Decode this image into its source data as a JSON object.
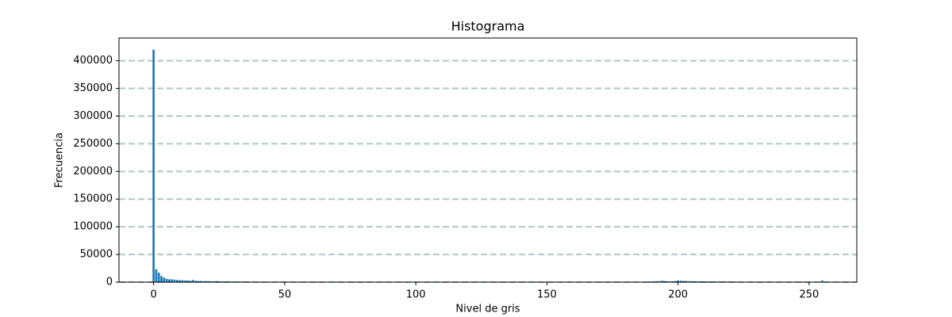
{
  "chart_data": {
    "type": "bar",
    "title": "Histograma",
    "x_label": "Nivel de gris",
    "y_label": "Frecuencia",
    "x": [
      0,
      1,
      2,
      3,
      4,
      5,
      6,
      7,
      8,
      9,
      10,
      11,
      12,
      13,
      14,
      15,
      16,
      17,
      18,
      19,
      20,
      21,
      22,
      23,
      24,
      25,
      26,
      27,
      28,
      29,
      30,
      31,
      32,
      33,
      34,
      35,
      36,
      37,
      38,
      39,
      40,
      41,
      42,
      43,
      44,
      45,
      46,
      47,
      48,
      49,
      50,
      51,
      52,
      53,
      54,
      55,
      56,
      57,
      58,
      59,
      60,
      61,
      62,
      63,
      64,
      65,
      66,
      67,
      68,
      69,
      70,
      71,
      72,
      73,
      74,
      75,
      76,
      77,
      78,
      79,
      80,
      81,
      82,
      83,
      84,
      85,
      86,
      87,
      88,
      89,
      90,
      91,
      92,
      93,
      94,
      95,
      96,
      97,
      98,
      99,
      100,
      101,
      102,
      103,
      104,
      105,
      106,
      107,
      108,
      109,
      110,
      111,
      112,
      113,
      114,
      115,
      116,
      117,
      118,
      119,
      120,
      121,
      122,
      123,
      124,
      125,
      126,
      127,
      128,
      129,
      130,
      131,
      132,
      133,
      134,
      135,
      136,
      137,
      138,
      139,
      140,
      141,
      142,
      143,
      144,
      145,
      146,
      147,
      148,
      149,
      150,
      151,
      152,
      153,
      154,
      155,
      156,
      157,
      158,
      159,
      160,
      161,
      162,
      163,
      164,
      165,
      166,
      167,
      168,
      169,
      170,
      171,
      172,
      173,
      174,
      175,
      176,
      177,
      178,
      179,
      180,
      181,
      182,
      183,
      184,
      185,
      186,
      187,
      188,
      189,
      190,
      191,
      192,
      193,
      194,
      195,
      196,
      197,
      198,
      199,
      200,
      201,
      202,
      203,
      204,
      205,
      206,
      207,
      208,
      209,
      210,
      211,
      212,
      213,
      214,
      215,
      216,
      217,
      218,
      219,
      220,
      221,
      222,
      223,
      224,
      225,
      226,
      227,
      228,
      229,
      230,
      231,
      232,
      233,
      234,
      235,
      236,
      237,
      238,
      239,
      240,
      241,
      242,
      243,
      244,
      245,
      246,
      247,
      248,
      249,
      250,
      251,
      252,
      253,
      254,
      255
    ],
    "values": [
      420000,
      23000,
      17000,
      11000,
      8000,
      6000,
      5000,
      5000,
      4500,
      4000,
      3500,
      3500,
      3000,
      3000,
      2500,
      4000,
      2500,
      2200,
      2000,
      1900,
      1800,
      1700,
      1600,
      1500,
      2000,
      1500,
      1400,
      1300,
      1300,
      1200,
      1200,
      1100,
      1100,
      1000,
      1000,
      1000,
      950,
      900,
      900,
      850,
      850,
      800,
      800,
      750,
      750,
      700,
      700,
      700,
      650,
      650,
      600,
      600,
      600,
      550,
      550,
      550,
      500,
      500,
      500,
      500,
      500,
      800,
      900,
      800,
      600,
      500,
      450,
      450,
      400,
      400,
      400,
      350,
      350,
      350,
      350,
      350,
      350,
      350,
      350,
      350,
      350,
      300,
      300,
      300,
      300,
      300,
      300,
      300,
      300,
      300,
      300,
      250,
      250,
      250,
      250,
      250,
      250,
      250,
      250,
      250,
      250,
      200,
      200,
      200,
      200,
      200,
      200,
      200,
      200,
      200,
      200,
      200,
      200,
      200,
      200,
      200,
      200,
      200,
      200,
      200,
      200,
      150,
      150,
      150,
      150,
      150,
      150,
      150,
      150,
      150,
      150,
      150,
      150,
      150,
      150,
      150,
      150,
      150,
      150,
      150,
      150,
      150,
      150,
      150,
      150,
      150,
      150,
      150,
      150,
      150,
      150,
      150,
      150,
      150,
      150,
      150,
      150,
      150,
      150,
      150,
      150,
      200,
      200,
      200,
      200,
      200,
      200,
      200,
      200,
      200,
      200,
      200,
      200,
      200,
      200,
      200,
      200,
      200,
      200,
      200,
      200,
      300,
      400,
      500,
      600,
      700,
      800,
      900,
      1000,
      1200,
      1300,
      1400,
      1500,
      1800,
      2500,
      1800,
      1500,
      1400,
      1600,
      1800,
      3000,
      2500,
      2200,
      2000,
      1800,
      1700,
      1600,
      1500,
      1500,
      1400,
      1400,
      1300,
      1300,
      1200,
      1200,
      1100,
      1100,
      1000,
      1000,
      1000,
      900,
      900,
      900,
      800,
      800,
      800,
      700,
      700,
      700,
      600,
      600,
      600,
      550,
      550,
      500,
      500,
      500,
      450,
      450,
      400,
      400,
      400,
      350,
      350,
      300,
      300,
      300,
      300,
      300,
      300,
      300,
      300,
      350,
      400,
      500,
      3000
    ],
    "color": "#1f77b4",
    "xlim": [
      -13.19,
      268.19
    ],
    "xticks": [
      0,
      50,
      100,
      150,
      200,
      250
    ],
    "ylim": [
      0,
      441000
    ],
    "yticks": [
      0,
      50000,
      100000,
      150000,
      200000,
      250000,
      300000,
      350000,
      400000
    ],
    "grid": true,
    "grid_color": "#b3c6c6"
  }
}
